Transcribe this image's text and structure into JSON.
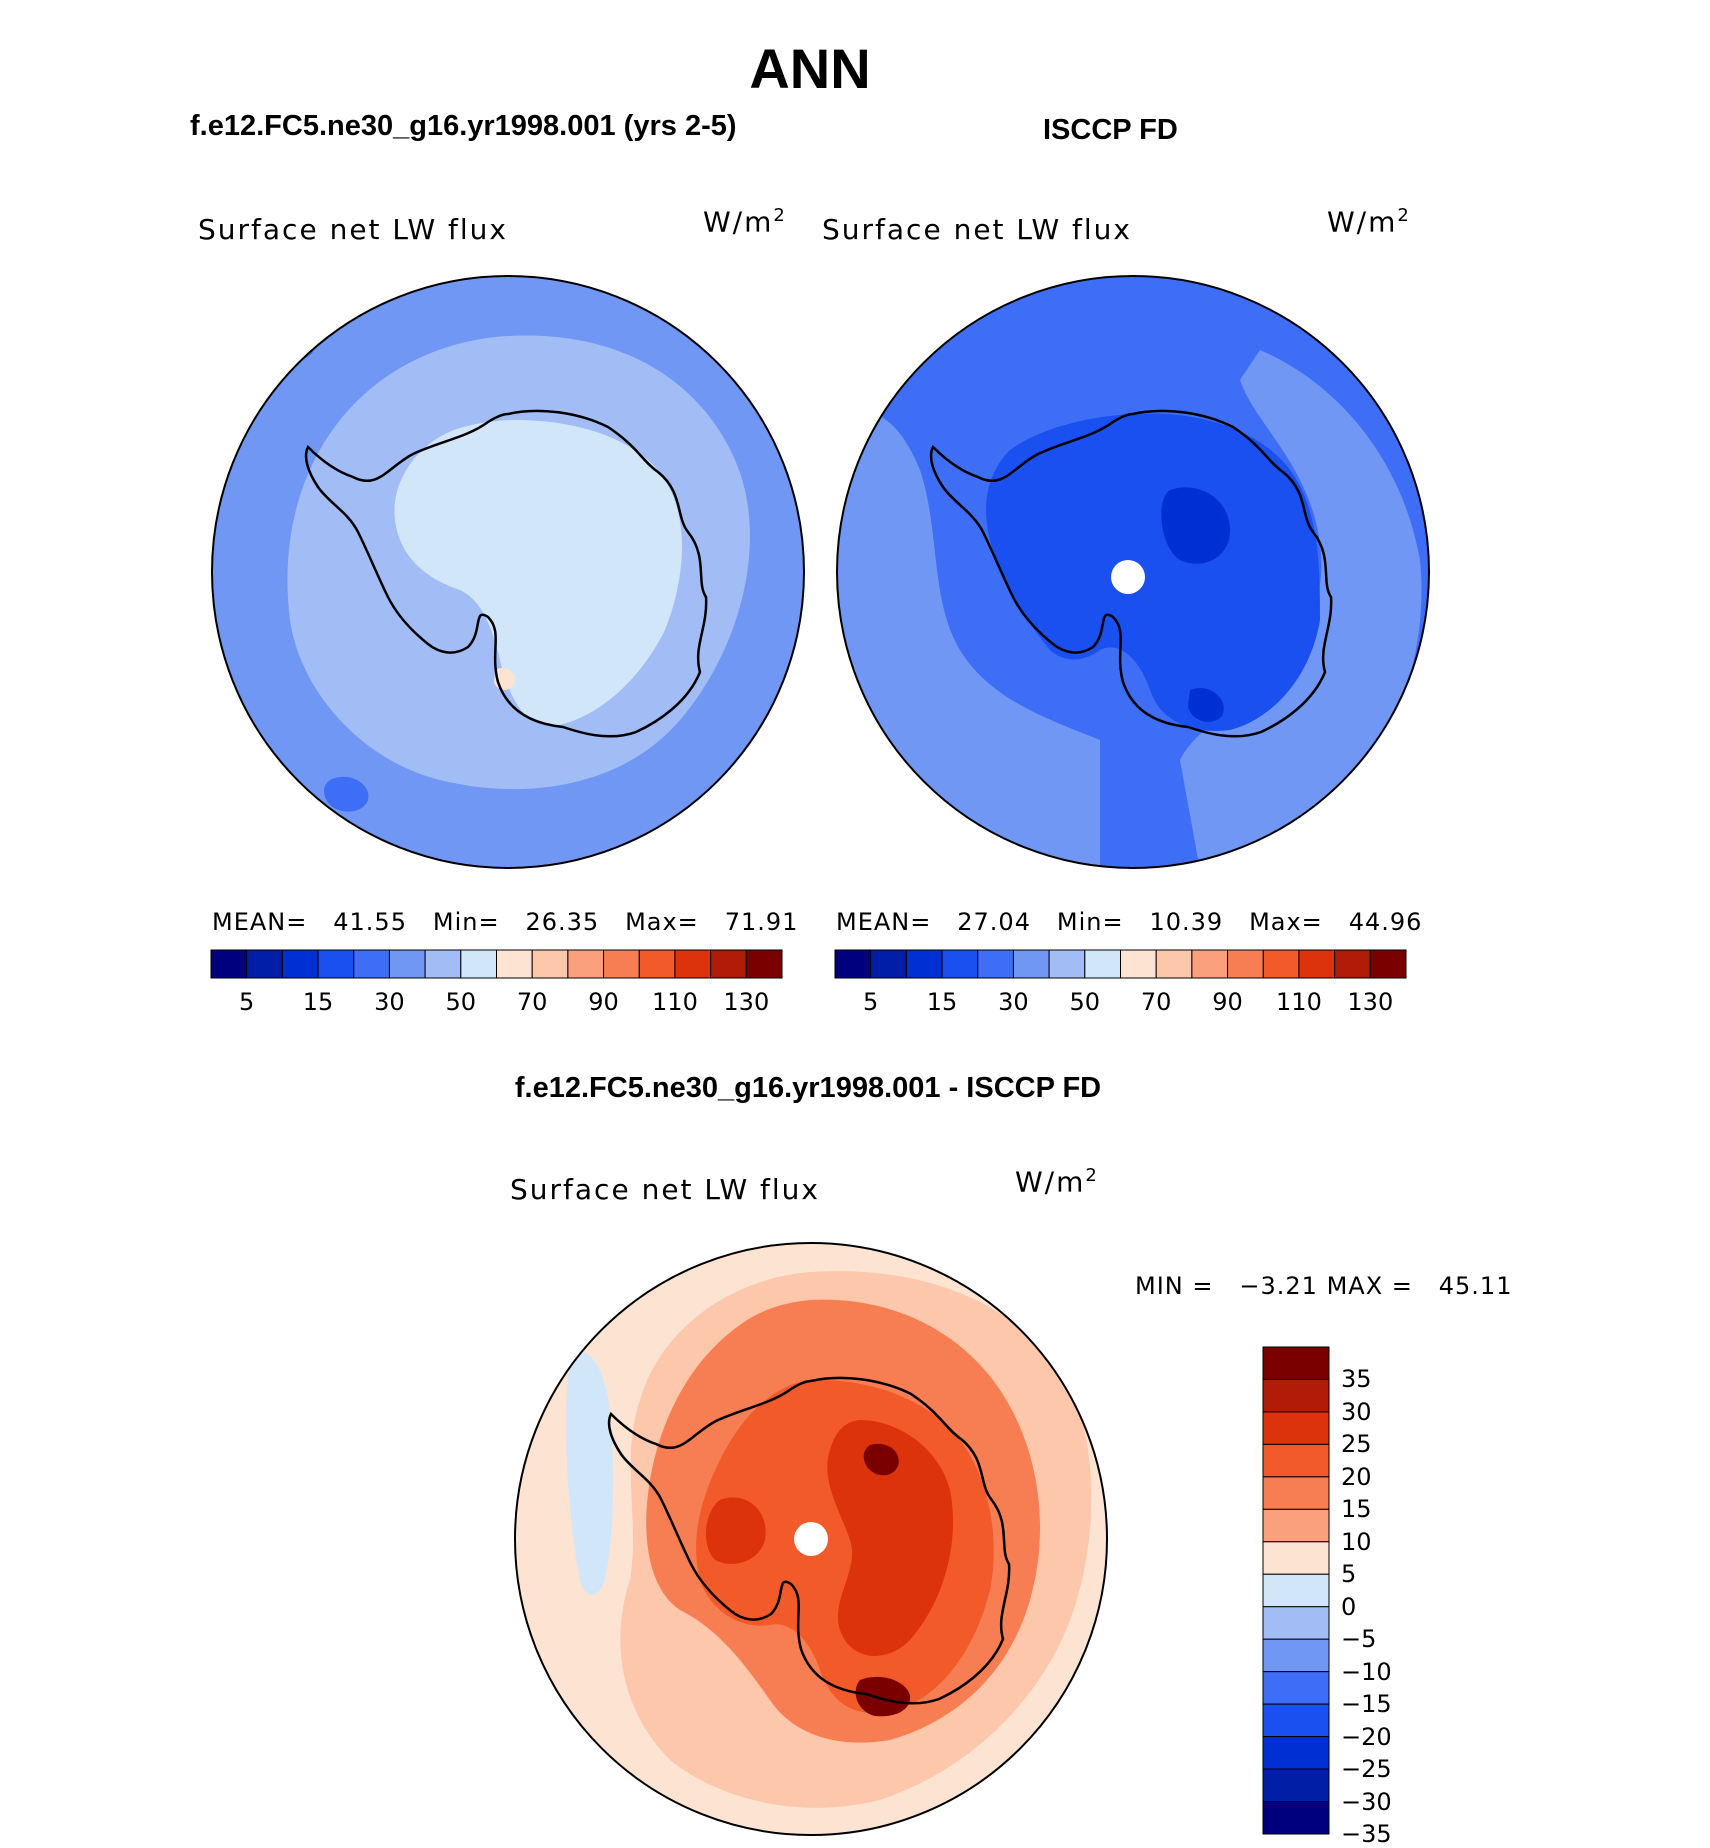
{
  "title": "ANN",
  "panels": [
    {
      "id": "model",
      "header": "f.e12.FC5.ne30_g16.yr1998.001 (yrs 2-5)",
      "variable": "Surface net LW flux",
      "units_base": "W/m",
      "units_exp": "2",
      "stats": {
        "mean_label": "MEAN=",
        "mean": "41.55",
        "min_label": "Min=",
        "min": "26.35",
        "max_label": "Max=",
        "max": "71.91"
      }
    },
    {
      "id": "obs",
      "header": "ISCCP FD",
      "variable": "Surface net LW flux",
      "units_base": "W/m",
      "units_exp": "2",
      "stats": {
        "mean_label": "MEAN=",
        "mean": "27.04",
        "min_label": "Min=",
        "min": "10.39",
        "max_label": "Max=",
        "max": "44.96"
      }
    },
    {
      "id": "diff",
      "header": "f.e12.FC5.ne30_g16.yr1998.001 - ISCCP FD",
      "variable": "Surface net LW flux",
      "units_base": "W/m",
      "units_exp": "2",
      "stats": {
        "min_label": "MIN =",
        "min": "−3.21",
        "max_label": "MAX =",
        "max": "45.11"
      }
    }
  ],
  "abs_colorbar": {
    "colors": [
      "#00007f",
      "#001fa6",
      "#0030d4",
      "#1a4ff0",
      "#3d6ef5",
      "#7197f4",
      "#a2bdf6",
      "#d2e6fa",
      "#fde4d2",
      "#fcc7ab",
      "#fba07d",
      "#f77d52",
      "#f25a2a",
      "#dc330c",
      "#b01c08",
      "#7a0000"
    ],
    "tick_labels": [
      "5",
      "15",
      "30",
      "50",
      "70",
      "90",
      "110",
      "130"
    ]
  },
  "diff_colorbar": {
    "colors": [
      "#7a0000",
      "#b01c08",
      "#dc330c",
      "#f25a2a",
      "#f77d52",
      "#fba07d",
      "#fde4d2",
      "#d2e6fa",
      "#a2bdf6",
      "#7197f4",
      "#3d6ef5",
      "#1a4ff0",
      "#0030d4",
      "#001fa6",
      "#00007f"
    ],
    "tick_labels": [
      "35",
      "30",
      "25",
      "20",
      "15",
      "10",
      "5",
      "0",
      "−5",
      "−10",
      "−15",
      "−20",
      "−25",
      "−30",
      "−35"
    ]
  },
  "map_colors": {
    "model_ocean": "#7197f4",
    "model_band": "#a2bdf6",
    "model_inner": "#d2e6fa",
    "model_dark": "#3d6ef5",
    "model_warm": "#fde4d2",
    "obs_ocean": "#3d6ef5",
    "obs_outer": "#7197f4",
    "obs_land": "#1a4ff0",
    "obs_deep": "#0030d4",
    "diff_outer": "#fde4d2",
    "diff_mid": "#fcc7ab",
    "diff_ring": "#f77d52",
    "diff_land": "#f25a2a",
    "diff_core": "#dc330c",
    "diff_max": "#7a0000",
    "diff_neg": "#d2e6fa",
    "pole_hole": "#ffffff",
    "coastline": "#000000"
  }
}
